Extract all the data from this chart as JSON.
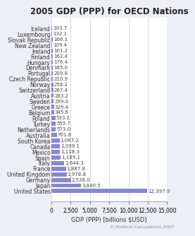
{
  "title": "2005 GDP (PPP) for OECD Nations",
  "xlabel": "GDP (PPP) [billions $USD]",
  "copyright": "© Political Calculations 2007",
  "xlim": [
    0,
    15000
  ],
  "xticks": [
    0,
    2500,
    5000,
    7500,
    10000,
    12500,
    15000
  ],
  "bar_color": "#8888cc",
  "countries": [
    "Iceland",
    "Luxembourg",
    "Slovak Republic",
    "New Zealand",
    "Ireland",
    "Finland",
    "Hungary",
    "Denmark",
    "Portugal",
    "Czech Republic",
    "Norway",
    "Switzerland",
    "Austria",
    "Sweden",
    "Greece",
    "Belgium",
    "Poland",
    "Turkey",
    "Netherlands",
    "Australia",
    "South Korea",
    "Canada",
    "Mexico",
    "Spain",
    "Italy",
    "France",
    "United Kingdom",
    "Germany",
    "Japan",
    "United States"
  ],
  "values": [
    103.7,
    132.1,
    166.1,
    109.4,
    161.2,
    162.4,
    176.4,
    185.0,
    209.8,
    210.9,
    258.2,
    267.4,
    283.2,
    299.0,
    329.4,
    345.6,
    533.2,
    555.7,
    573.0,
    701.8,
    1067.2,
    1099.1,
    1118.3,
    1189.1,
    1644.3,
    1887.8,
    1978.8,
    2538.0,
    3840.5,
    12397.9
  ],
  "value_labels": [
    "103.7",
    "132.1",
    "166.1",
    "109.4",
    "161.2",
    "162.4",
    "176.4",
    "185.0",
    "209.8",
    "210.9",
    "258.2",
    "267.4",
    "283.2",
    "299.0",
    "329.4",
    "345.6",
    "533.2",
    "555.7",
    "573.0",
    "701.8",
    "1,067.2",
    "1,099.1",
    "1,118.3",
    "1,189.1",
    "1,644.3",
    "1,887.8",
    "1,978.8",
    "2,538.0",
    "3,840.5",
    "12,397.9"
  ],
  "bg_color": "#eeeef5",
  "plot_bg_color": "#ffffff",
  "title_fontsize": 8.5,
  "label_fontsize": 5.5,
  "tick_fontsize": 5.5,
  "value_fontsize": 5.0
}
